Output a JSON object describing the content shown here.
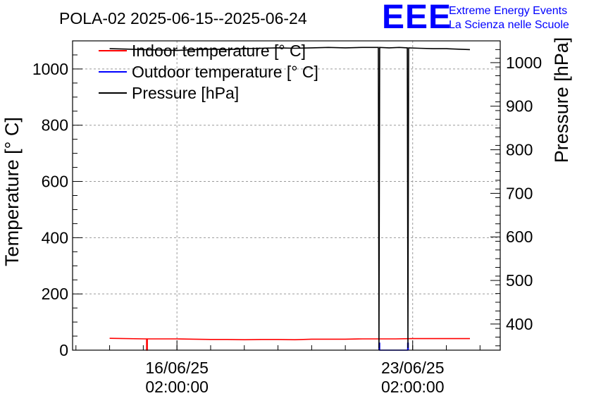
{
  "chart_data": {
    "type": "line",
    "title": "POLA-02 2025-06-15--2025-06-24",
    "ylabel": "Temperature [° C]",
    "y2label": "Pressure [hPa]",
    "ylim": [
      0,
      1100
    ],
    "y2lim": [
      340,
      1050
    ],
    "y_ticks": [
      0,
      200,
      400,
      600,
      800,
      1000
    ],
    "y2_ticks": [
      400,
      500,
      600,
      700,
      800,
      900,
      1000
    ],
    "x_ticks": [
      {
        "day": 1.0,
        "line1": "16/06/25",
        "line2": "02:00:00"
      },
      {
        "day": 8.0,
        "line1": "23/06/25",
        "line2": "02:00:00"
      }
    ],
    "x_note": "x values are days after 15/06/25 02:00:00",
    "xlim": [
      -2.1,
      10.6
    ],
    "grid": true,
    "legend_position": "top-left",
    "series": [
      {
        "name": "Indoor temperature [° C]",
        "axis": "left",
        "color": "#ff0000",
        "points": [
          [
            -1.0,
            42
          ],
          [
            0.05,
            40
          ],
          [
            0.1,
            40
          ],
          [
            0.1,
            0
          ],
          [
            0.12,
            0
          ],
          [
            0.12,
            40
          ],
          [
            0.3,
            40
          ],
          [
            1.0,
            40
          ],
          [
            1.5,
            39
          ],
          [
            2.0,
            38
          ],
          [
            2.5,
            38
          ],
          [
            3.0,
            37
          ],
          [
            3.5,
            38
          ],
          [
            4.0,
            38
          ],
          [
            4.5,
            37
          ],
          [
            5.0,
            39
          ],
          [
            5.5,
            39
          ],
          [
            6.0,
            39
          ],
          [
            6.5,
            40
          ],
          [
            7.0,
            40
          ],
          [
            7.5,
            40
          ],
          [
            8.0,
            41
          ],
          [
            8.5,
            41
          ],
          [
            9.0,
            41
          ],
          [
            9.7,
            41
          ]
        ]
      },
      {
        "name": "Outdoor temperature [° C]",
        "axis": "left",
        "color": "#0000ff",
        "points": [
          [
            7.0,
            0
          ],
          [
            7.0,
            25
          ],
          [
            7.02,
            25
          ],
          [
            7.02,
            0
          ],
          [
            7.85,
            0
          ],
          [
            7.85,
            25
          ],
          [
            7.87,
            25
          ],
          [
            7.87,
            0
          ]
        ]
      },
      {
        "name": "Pressure [hPa]",
        "axis": "right",
        "color": "#000000",
        "points": [
          [
            -1.0,
            1032
          ],
          [
            -0.5,
            1031
          ],
          [
            0.0,
            1030
          ],
          [
            0.5,
            1029
          ],
          [
            1.0,
            1028
          ],
          [
            1.5,
            1030
          ],
          [
            2.0,
            1031
          ],
          [
            2.5,
            1030
          ],
          [
            3.0,
            1032
          ],
          [
            3.5,
            1033
          ],
          [
            4.0,
            1034
          ],
          [
            4.5,
            1033
          ],
          [
            5.0,
            1034
          ],
          [
            5.5,
            1035
          ],
          [
            6.0,
            1034
          ],
          [
            6.5,
            1035
          ],
          [
            6.98,
            1035
          ],
          [
            7.0,
            345
          ],
          [
            7.02,
            1035
          ],
          [
            7.3,
            1034
          ],
          [
            7.6,
            1035
          ],
          [
            7.84,
            1034
          ],
          [
            7.86,
            345
          ],
          [
            7.88,
            1034
          ],
          [
            8.2,
            1033
          ],
          [
            8.6,
            1032
          ],
          [
            9.0,
            1032
          ],
          [
            9.7,
            1030
          ]
        ]
      }
    ]
  },
  "logo": {
    "mark": "EEE",
    "line1": "Extreme Energy Events",
    "line2": "La Scienza nelle Scuole",
    "color": "#0000ff"
  }
}
